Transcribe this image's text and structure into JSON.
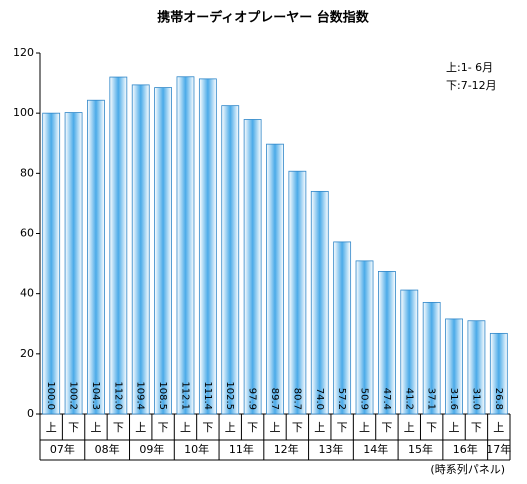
{
  "chart_data": {
    "type": "bar",
    "title": "携帯オーディオプレーヤー 台数指数",
    "categories": [
      "上",
      "下",
      "上",
      "下",
      "上",
      "下",
      "上",
      "下",
      "上",
      "下",
      "上",
      "下",
      "上",
      "下",
      "上",
      "下",
      "上",
      "下",
      "上",
      "下",
      "上"
    ],
    "year_groups": [
      "07年",
      "08年",
      "09年",
      "10年",
      "11年",
      "12年",
      "13年",
      "14年",
      "15年",
      "16年",
      "17年"
    ],
    "values": [
      100.0,
      100.2,
      104.3,
      112.0,
      109.4,
      108.5,
      112.1,
      111.4,
      102.5,
      97.9,
      89.7,
      80.7,
      74.0,
      57.2,
      50.9,
      47.4,
      41.2,
      37.1,
      31.6,
      31.0,
      26.8
    ],
    "value_labels": [
      "100.0",
      "100.2",
      "104.3",
      "112.0",
      "109.4",
      "108.5",
      "112.1",
      "111.4",
      "102.5",
      "97.9",
      "89.7",
      "80.7",
      "74.0",
      "57.2",
      "50.9",
      "47.4",
      "41.2",
      "37.1",
      "31.6",
      "31.0",
      "26.8"
    ],
    "color": "#4aaae8",
    "ylim": [
      0,
      120
    ],
    "yticks": [
      0,
      20,
      40,
      60,
      80,
      100,
      120
    ],
    "annotations": [
      "上:1- 6月",
      "下:7-12月",
      "(時系列パネル)"
    ]
  }
}
